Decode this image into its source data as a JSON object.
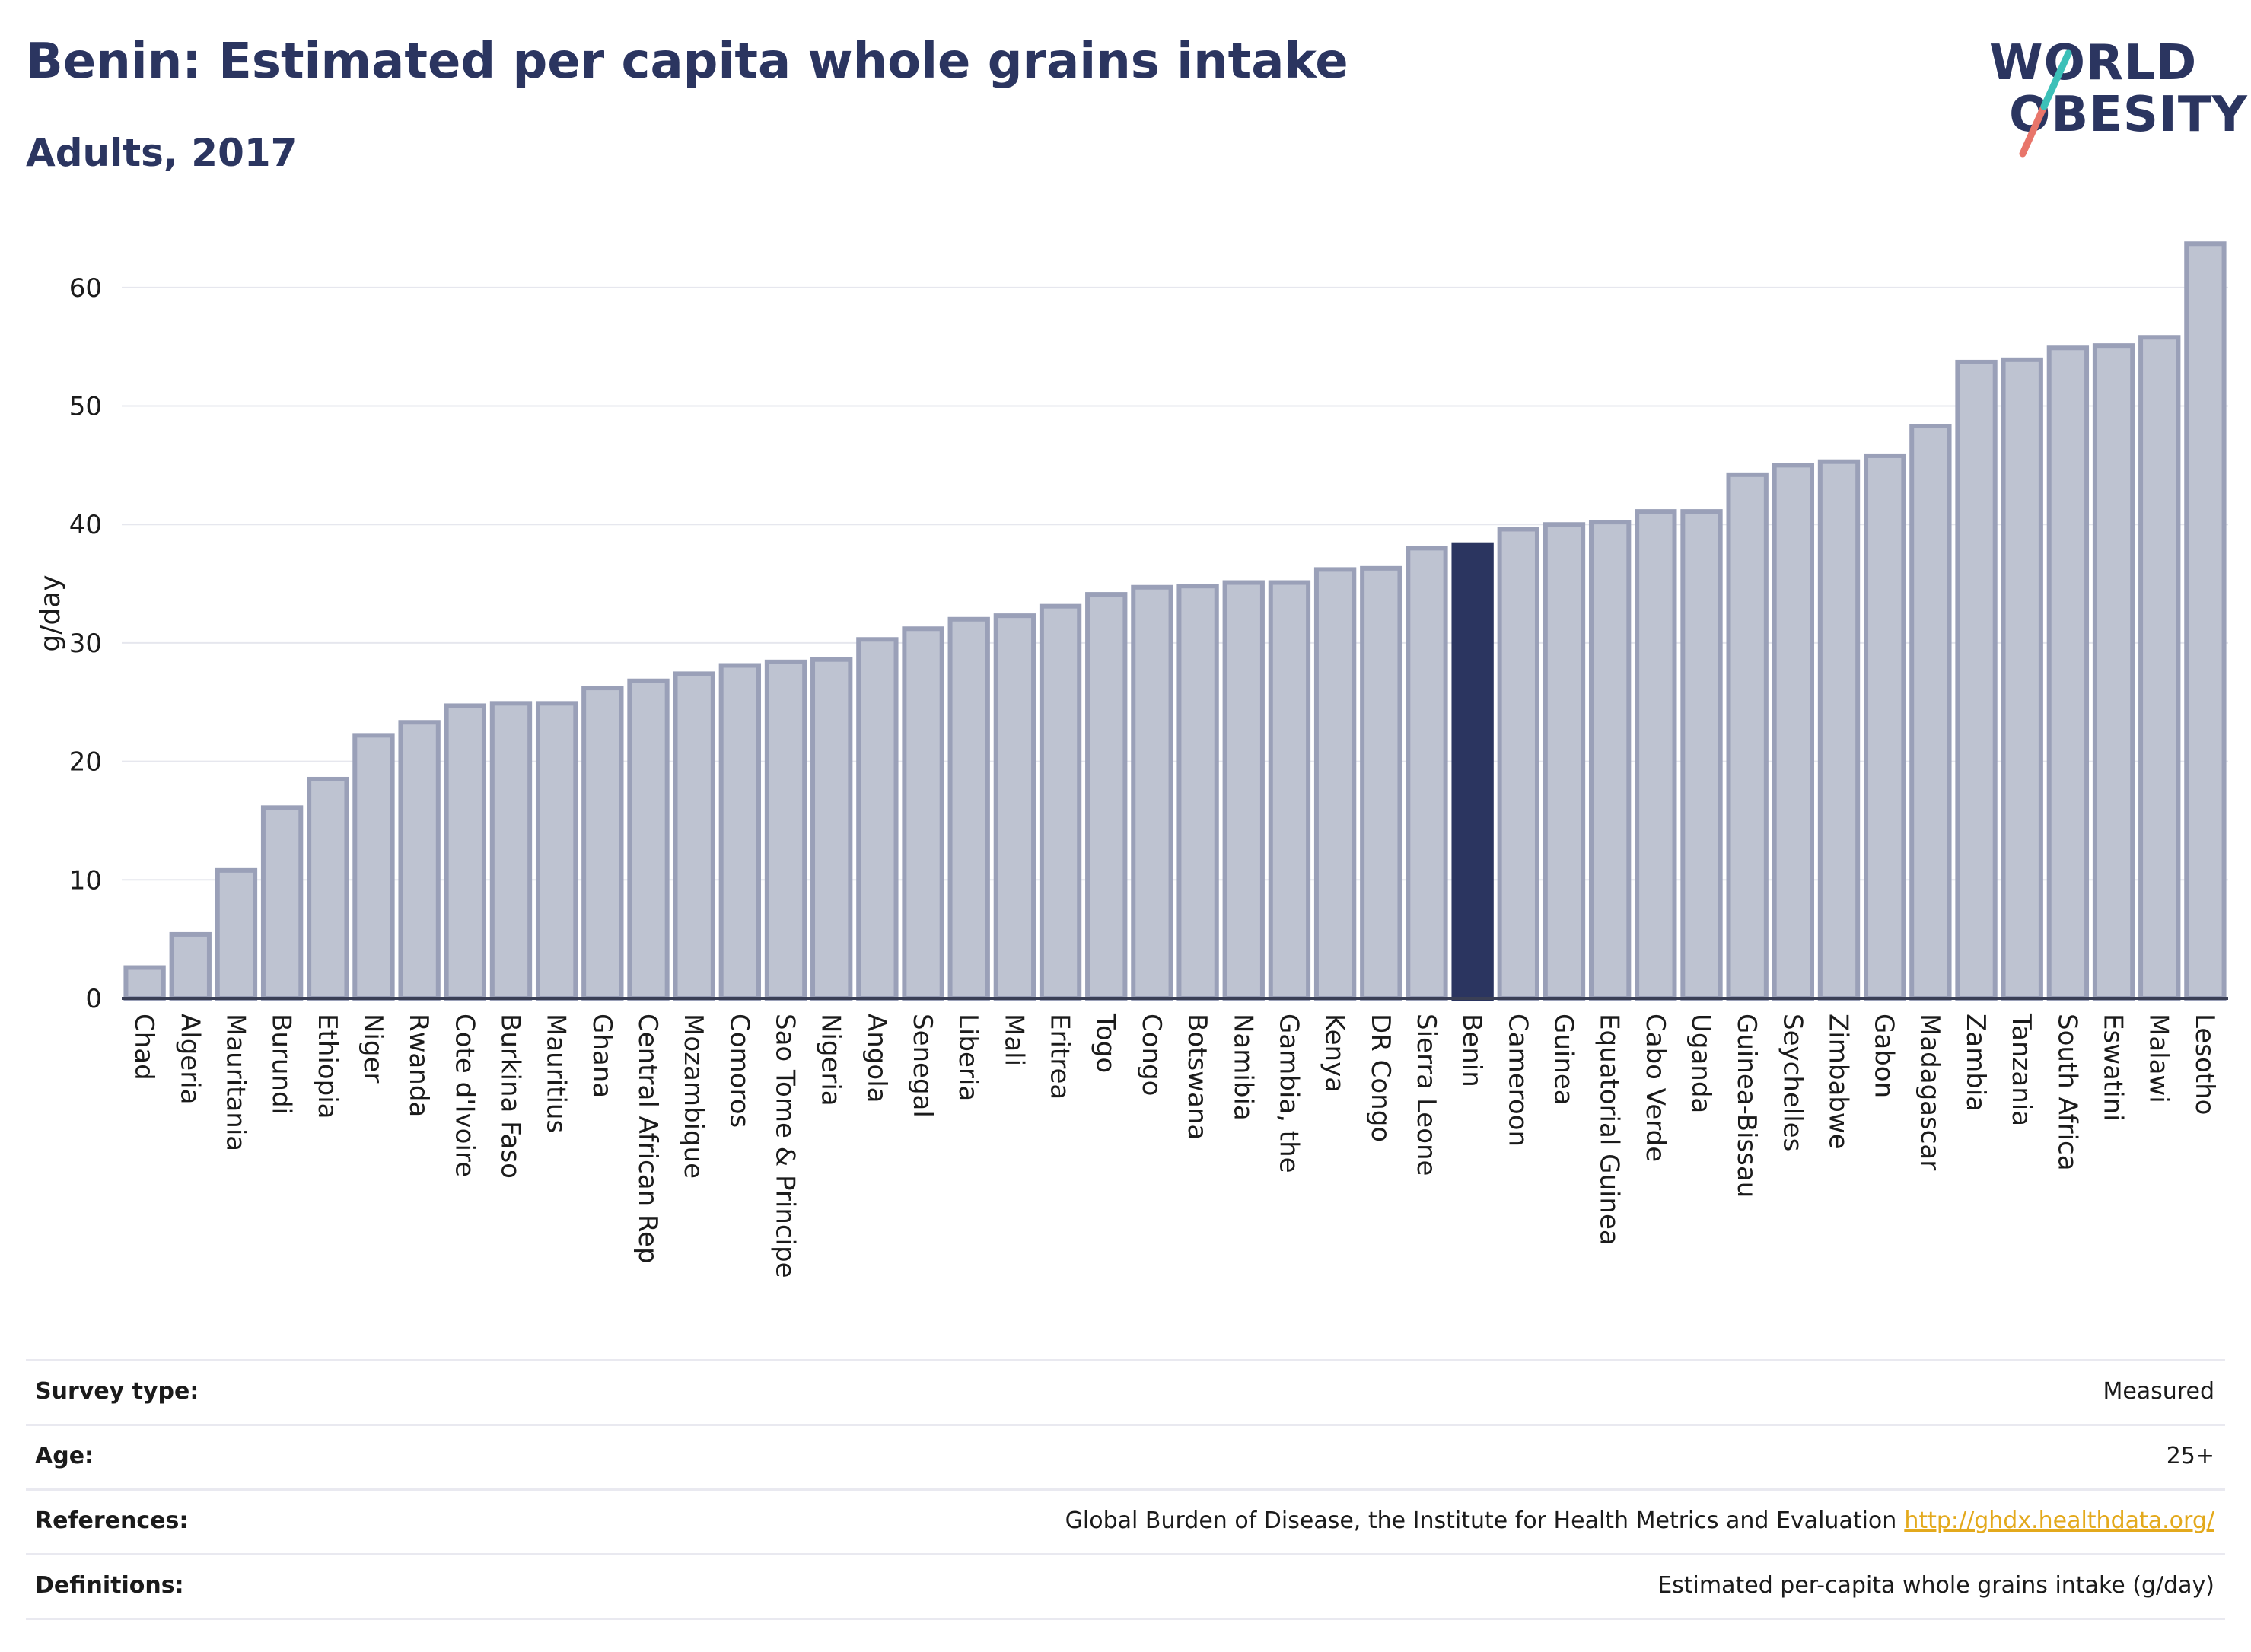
{
  "header": {
    "title": "Benin: Estimated per capita whole grains intake",
    "subtitle": "Adults, 2017"
  },
  "logo": {
    "line1": "WORLD",
    "line2": "OBESITY"
  },
  "colors": {
    "highlight": "#2b3560",
    "bar_fill": "#bec3d1",
    "bar_stroke": "#9aa0b8",
    "title": "#2b3560",
    "link": "#e3a91c"
  },
  "chart_data": {
    "type": "bar",
    "title": "Benin: Estimated per capita whole grains intake",
    "subtitle": "Adults, 2017",
    "xlabel": "",
    "ylabel": "g/day",
    "ylim": [
      0,
      65
    ],
    "yticks": [
      0,
      10,
      20,
      30,
      40,
      50,
      60
    ],
    "grid": true,
    "highlight": "Benin",
    "categories": [
      "Chad",
      "Algeria",
      "Mauritania",
      "Burundi",
      "Ethiopia",
      "Niger",
      "Rwanda",
      "Cote d'Ivoire",
      "Burkina Faso",
      "Mauritius",
      "Ghana",
      "Central African Rep",
      "Mozambique",
      "Comoros",
      "Sao Tome & Principe",
      "Nigeria",
      "Angola",
      "Senegal",
      "Liberia",
      "Mali",
      "Eritrea",
      "Togo",
      "Congo",
      "Botswana",
      "Namibia",
      "Gambia, the",
      "Kenya",
      "DR Congo",
      "Sierra Leone",
      "Benin",
      "Cameroon",
      "Guinea",
      "Equatorial Guinea",
      "Cabo Verde",
      "Uganda",
      "Guinea-Bissau",
      "Seychelles",
      "Zimbabwe",
      "Gabon",
      "Madagascar",
      "Zambia",
      "Tanzania",
      "South Africa",
      "Eswatini",
      "Malawi",
      "Lesotho"
    ],
    "values": [
      2.6,
      5.4,
      10.8,
      16.1,
      18.5,
      22.2,
      23.3,
      24.7,
      24.9,
      24.9,
      26.2,
      26.8,
      27.4,
      28.1,
      28.4,
      28.6,
      30.3,
      31.2,
      32.0,
      32.3,
      33.1,
      34.1,
      34.7,
      34.8,
      35.1,
      35.1,
      36.2,
      36.3,
      38.0,
      38.3,
      39.6,
      40.0,
      40.2,
      41.1,
      41.1,
      44.2,
      45.0,
      45.3,
      45.8,
      48.3,
      53.7,
      53.9,
      54.9,
      55.1,
      55.8,
      63.7
    ]
  },
  "meta": [
    {
      "label": "Survey type:",
      "value": "Measured"
    },
    {
      "label": "Age:",
      "value": "25+"
    },
    {
      "label": "References:",
      "value": "Global Burden of Disease, the Institute for Health Metrics and Evaluation",
      "link": "http://ghdx.healthdata.org/"
    },
    {
      "label": "Definitions:",
      "value": "Estimated per-capita whole grains intake (g/day)"
    }
  ]
}
